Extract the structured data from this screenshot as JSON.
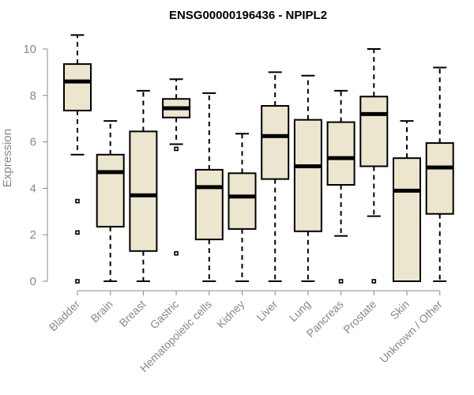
{
  "chart_data": {
    "type": "box",
    "title": "ENSG00000196436 - NPIPL2",
    "ylabel": "Expression",
    "xlabel": "",
    "ylim": [
      0,
      10
    ],
    "yticks": [
      0,
      2,
      4,
      6,
      8,
      10
    ],
    "grid": false,
    "box_fill": "#ede6cf",
    "categories": [
      "Bladder",
      "Brain",
      "Breast",
      "Gastric",
      "Hematopoietic cells",
      "Kidney",
      "Liver",
      "Lung",
      "Pancreas",
      "Prostate",
      "Skin",
      "Unknown / Other"
    ],
    "boxes": [
      {
        "whisker_low": 5.45,
        "q1": 7.35,
        "median": 8.6,
        "q3": 9.35,
        "whisker_high": 10.6,
        "outliers": [
          3.45,
          2.1,
          0
        ]
      },
      {
        "whisker_low": 0,
        "q1": 2.35,
        "median": 4.7,
        "q3": 5.45,
        "whisker_high": 6.9,
        "outliers": []
      },
      {
        "whisker_low": 0,
        "q1": 1.3,
        "median": 3.7,
        "q3": 6.45,
        "whisker_high": 8.2,
        "outliers": []
      },
      {
        "whisker_low": 5.9,
        "q1": 7.05,
        "median": 7.45,
        "q3": 7.85,
        "whisker_high": 8.7,
        "outliers": [
          5.7,
          1.2
        ]
      },
      {
        "whisker_low": 0,
        "q1": 1.8,
        "median": 4.05,
        "q3": 4.8,
        "whisker_high": 8.1,
        "outliers": []
      },
      {
        "whisker_low": 0,
        "q1": 2.25,
        "median": 3.65,
        "q3": 4.65,
        "whisker_high": 6.35,
        "outliers": []
      },
      {
        "whisker_low": 0,
        "q1": 4.4,
        "median": 6.25,
        "q3": 7.55,
        "whisker_high": 9.0,
        "outliers": []
      },
      {
        "whisker_low": 0,
        "q1": 2.15,
        "median": 4.95,
        "q3": 6.95,
        "whisker_high": 8.85,
        "outliers": []
      },
      {
        "whisker_low": 1.95,
        "q1": 4.15,
        "median": 5.3,
        "q3": 6.85,
        "whisker_high": 8.2,
        "outliers": [
          0
        ]
      },
      {
        "whisker_low": 2.8,
        "q1": 4.95,
        "median": 7.2,
        "q3": 7.95,
        "whisker_high": 10.0,
        "outliers": [
          0
        ]
      },
      {
        "whisker_low": 0,
        "q1": 0,
        "median": 3.9,
        "q3": 5.3,
        "whisker_high": 6.9,
        "outliers": []
      },
      {
        "whisker_low": 0,
        "q1": 2.9,
        "median": 4.9,
        "q3": 5.95,
        "whisker_high": 9.2,
        "outliers": []
      }
    ]
  }
}
